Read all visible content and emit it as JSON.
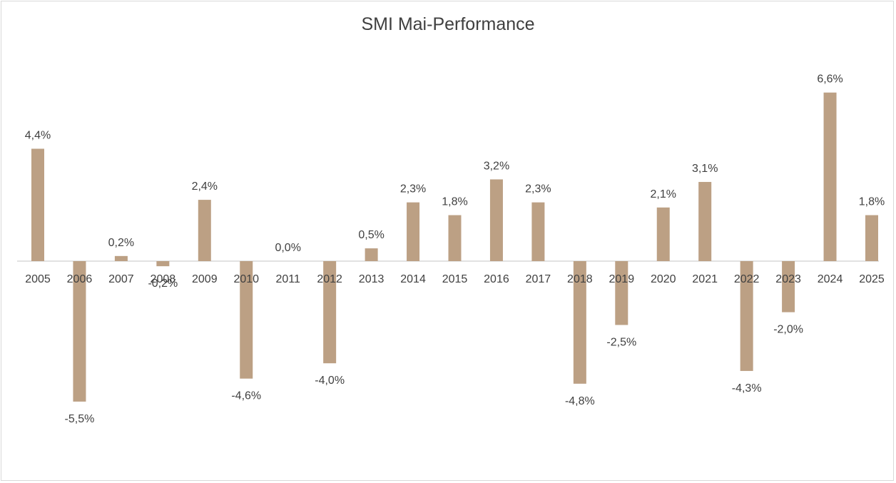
{
  "chart_data": {
    "type": "bar",
    "title": "SMI Mai-Performance",
    "categories": [
      "2005",
      "2006",
      "2007",
      "2008",
      "2009",
      "2010",
      "2011",
      "2012",
      "2013",
      "2014",
      "2015",
      "2016",
      "2017",
      "2018",
      "2019",
      "2020",
      "2021",
      "2022",
      "2023",
      "2024",
      "2025"
    ],
    "values": [
      4.4,
      -5.5,
      0.2,
      -0.2,
      2.4,
      -4.6,
      0.0,
      -4.0,
      0.5,
      2.3,
      1.8,
      3.2,
      2.3,
      -4.8,
      -2.5,
      2.1,
      3.1,
      -4.3,
      -2.0,
      6.6,
      1.8
    ],
    "data_labels": [
      "4,4%",
      "-5,5%",
      "0,2%",
      "-0,2%",
      "2,4%",
      "-4,6%",
      "0,0%",
      "-4,0%",
      "0,5%",
      "2,3%",
      "1,8%",
      "3,2%",
      "2,3%",
      "-4,8%",
      "-2,5%",
      "2,1%",
      "3,1%",
      "-4,3%",
      "-2,0%",
      "6,6%",
      "1,8%"
    ],
    "value_unit": "%",
    "bar_color": "#bca084",
    "axis_color": "#d9d9d9",
    "text_color": "#404040",
    "grid": false,
    "legend": "none"
  }
}
